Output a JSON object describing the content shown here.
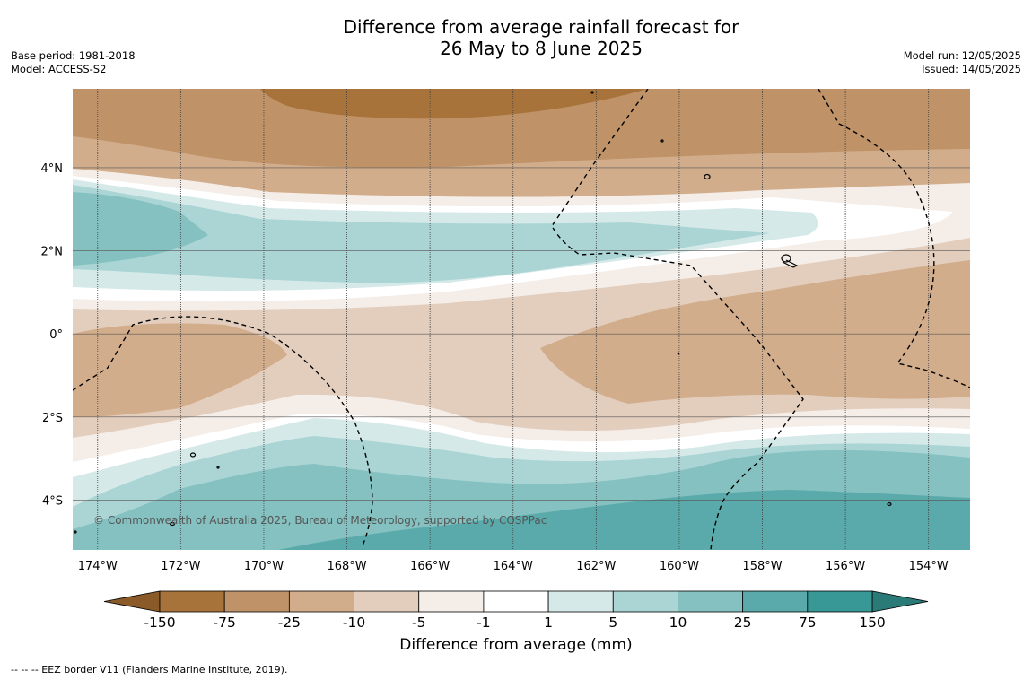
{
  "title": {
    "line1": "Difference from average rainfall forecast for",
    "line2": "26 May to 8 June 2025"
  },
  "meta_left": {
    "base_period": "Base period: 1981-2018",
    "model": "Model: ACCESS-S2"
  },
  "meta_right": {
    "model_run": "Model run: 12/05/2025",
    "issued": "Issued: 14/05/2025"
  },
  "map": {
    "lon_range": [
      -174.6,
      -153.0
    ],
    "lat_range": [
      -5.2,
      5.9
    ],
    "lon_ticks": [
      "174°W",
      "172°W",
      "170°W",
      "168°W",
      "166°W",
      "164°W",
      "162°W",
      "160°W",
      "158°W",
      "156°W",
      "154°W"
    ],
    "lat_ticks": [
      "4°N",
      "2°N",
      "0°",
      "2°S",
      "4°S"
    ],
    "copyright": "© Commonwealth of Australia 2025, Bureau of Meteorology, supported by COSPPac",
    "grid": true
  },
  "colorbar": {
    "ticks": [
      "-150",
      "-75",
      "-25",
      "-10",
      "-5",
      "-1",
      "1",
      "5",
      "10",
      "25",
      "75",
      "150"
    ],
    "colors": [
      "#a8733a",
      "#bf9268",
      "#d2ad8c",
      "#e3cebd",
      "#f4ede8",
      "#ffffff",
      "#d6e9e9",
      "#abd5d5",
      "#84c1c0",
      "#5baaab",
      "#379896"
    ],
    "extend_low_color": "#8a5a28",
    "extend_high_color": "#2a7a78",
    "title": "Difference from average (mm)"
  },
  "footer": "--  --  -- EEZ border V11 (Flanders Marine Institute, 2019)."
}
